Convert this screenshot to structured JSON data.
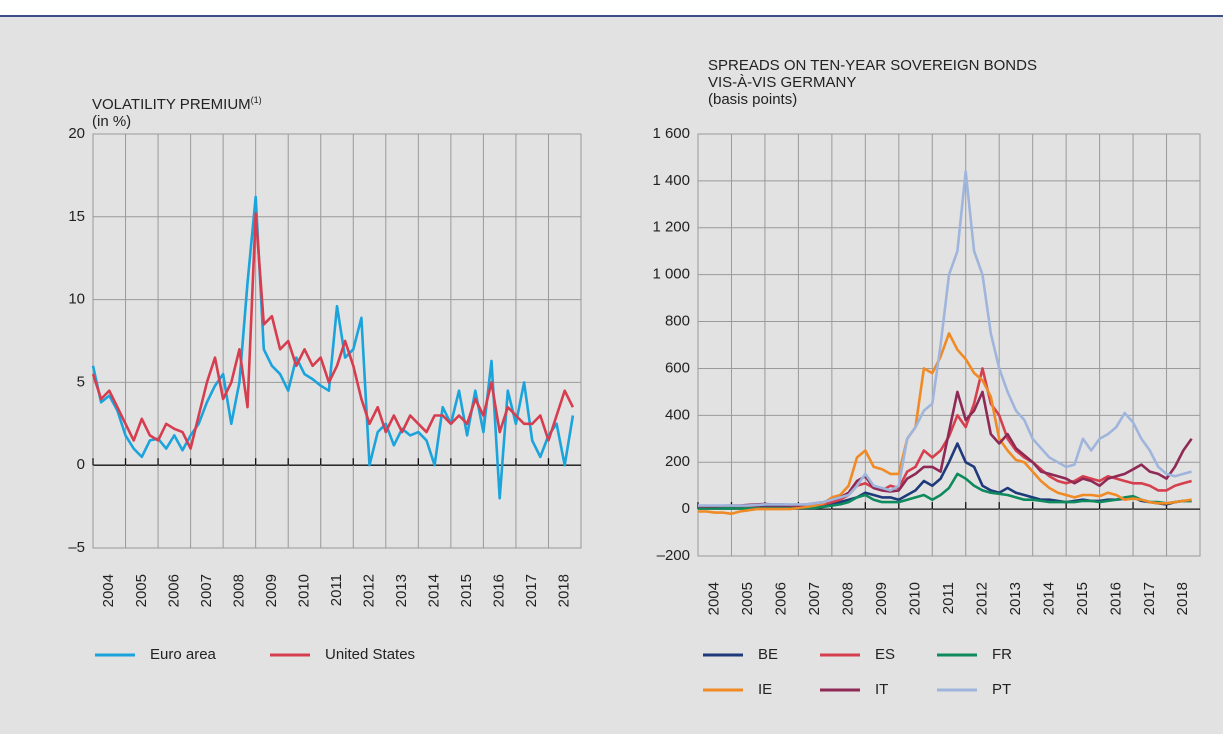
{
  "chart_data": [
    {
      "type": "line",
      "title": "VOLATILITY PREMIUM",
      "title_note": "(1)",
      "subtitle": "(in %)",
      "x": [
        2004,
        2004.25,
        2004.5,
        2004.75,
        2005,
        2005.25,
        2005.5,
        2005.75,
        2006,
        2006.25,
        2006.5,
        2006.75,
        2007,
        2007.25,
        2007.5,
        2007.75,
        2008,
        2008.25,
        2008.5,
        2008.75,
        2009,
        2009.25,
        2009.5,
        2009.75,
        2010,
        2010.25,
        2010.5,
        2010.75,
        2011,
        2011.25,
        2011.5,
        2011.75,
        2012,
        2012.25,
        2012.5,
        2012.75,
        2013,
        2013.25,
        2013.5,
        2013.75,
        2014,
        2014.25,
        2014.5,
        2014.75,
        2015,
        2015.25,
        2015.5,
        2015.75,
        2016,
        2016.25,
        2016.5,
        2016.75,
        2017,
        2017.25,
        2017.5,
        2017.75,
        2018,
        2018.25,
        2018.5,
        2018.75
      ],
      "xlim": [
        2004,
        2019
      ],
      "xticks": [
        2004,
        2005,
        2006,
        2007,
        2008,
        2009,
        2010,
        2011,
        2012,
        2013,
        2014,
        2015,
        2016,
        2017,
        2018
      ],
      "ylim": [
        -5,
        20
      ],
      "yticks": [
        {
          "value": -5,
          "label": "–5"
        },
        0,
        5,
        10,
        15,
        20
      ],
      "grid": true,
      "series": [
        {
          "name": "Euro area",
          "color": "#1ba3dc",
          "values": [
            6.0,
            3.8,
            4.2,
            3.3,
            1.8,
            1.0,
            0.5,
            1.5,
            1.6,
            1.0,
            1.8,
            0.9,
            1.8,
            2.5,
            3.8,
            4.8,
            5.5,
            2.5,
            5.0,
            11.0,
            16.2,
            7.0,
            6.0,
            5.5,
            4.5,
            6.5,
            5.5,
            5.2,
            4.8,
            4.5,
            9.6,
            6.5,
            7.0,
            8.9,
            0.0,
            2.0,
            2.5,
            1.2,
            2.2,
            1.8,
            2.0,
            1.5,
            0.0,
            3.5,
            2.5,
            4.5,
            1.8,
            4.5,
            2.0,
            6.3,
            -2.0,
            4.5,
            2.5,
            5.0,
            1.5,
            0.5,
            1.8,
            2.5,
            0.0,
            3.0
          ]
        },
        {
          "name": "United States",
          "color": "#d63e4f",
          "values": [
            5.5,
            4.0,
            4.5,
            3.5,
            2.5,
            1.5,
            2.8,
            1.8,
            1.5,
            2.5,
            2.2,
            2.0,
            1.0,
            3.0,
            5.0,
            6.5,
            4.0,
            5.0,
            7.0,
            3.5,
            15.2,
            8.5,
            9.0,
            7.0,
            7.5,
            6.0,
            7.0,
            6.0,
            6.5,
            5.0,
            6.0,
            7.5,
            6.0,
            4.0,
            2.5,
            3.5,
            2.0,
            3.0,
            2.0,
            3.0,
            2.5,
            2.0,
            3.0,
            3.0,
            2.5,
            3.0,
            2.5,
            4.0,
            3.0,
            5.0,
            2.0,
            3.5,
            3.0,
            2.5,
            2.5,
            3.0,
            1.5,
            3.0,
            4.5,
            3.5
          ]
        }
      ]
    },
    {
      "type": "line",
      "title": "SPREADS ON TEN-YEAR SOVEREIGN BONDS VIS-À-VIS GERMANY",
      "subtitle": "(basis points)",
      "x": [
        2004,
        2004.25,
        2004.5,
        2004.75,
        2005,
        2005.25,
        2005.5,
        2005.75,
        2006,
        2006.25,
        2006.5,
        2006.75,
        2007,
        2007.25,
        2007.5,
        2007.75,
        2008,
        2008.25,
        2008.5,
        2008.75,
        2009,
        2009.25,
        2009.5,
        2009.75,
        2010,
        2010.25,
        2010.5,
        2010.75,
        2011,
        2011.25,
        2011.5,
        2011.75,
        2012,
        2012.25,
        2012.5,
        2012.75,
        2013,
        2013.25,
        2013.5,
        2013.75,
        2014,
        2014.25,
        2014.5,
        2014.75,
        2015,
        2015.25,
        2015.5,
        2015.75,
        2016,
        2016.25,
        2016.5,
        2016.75,
        2017,
        2017.25,
        2017.5,
        2017.75,
        2018,
        2018.25,
        2018.5,
        2018.75
      ],
      "xlim": [
        2004,
        2019
      ],
      "xticks": [
        2004,
        2005,
        2006,
        2007,
        2008,
        2009,
        2010,
        2011,
        2012,
        2013,
        2014,
        2015,
        2016,
        2017,
        2018
      ],
      "ylim": [
        -200,
        1600
      ],
      "yticks": [
        {
          "value": -200,
          "label": "–200"
        },
        0,
        200,
        400,
        600,
        800,
        {
          "value": 1000,
          "label": "1 000"
        },
        {
          "value": 1200,
          "label": "1 200"
        },
        {
          "value": 1400,
          "label": "1 400"
        },
        {
          "value": 1600,
          "label": "1 600"
        }
      ],
      "grid": true,
      "series": [
        {
          "name": "BE",
          "color": "#1f3a7a",
          "values": [
            5,
            5,
            5,
            5,
            5,
            5,
            8,
            8,
            10,
            10,
            10,
            10,
            10,
            10,
            10,
            15,
            20,
            30,
            40,
            50,
            70,
            60,
            50,
            50,
            40,
            60,
            80,
            120,
            100,
            130,
            200,
            280,
            200,
            180,
            100,
            80,
            70,
            90,
            70,
            60,
            50,
            40,
            40,
            35,
            30,
            35,
            40,
            35,
            35,
            40,
            40,
            45,
            50,
            35,
            30,
            25,
            20,
            30,
            35,
            35
          ]
        },
        {
          "name": "ES",
          "color": "#d6404e",
          "values": [
            5,
            5,
            5,
            5,
            5,
            5,
            5,
            5,
            5,
            5,
            5,
            5,
            5,
            5,
            10,
            20,
            30,
            40,
            60,
            100,
            110,
            90,
            80,
            100,
            90,
            160,
            180,
            250,
            220,
            250,
            310,
            400,
            350,
            450,
            600,
            450,
            400,
            300,
            250,
            220,
            200,
            170,
            140,
            120,
            110,
            120,
            140,
            130,
            120,
            140,
            130,
            120,
            110,
            110,
            100,
            80,
            80,
            100,
            110,
            120
          ]
        },
        {
          "name": "FR",
          "color": "#0e8a5c",
          "values": [
            3,
            3,
            3,
            3,
            3,
            3,
            3,
            3,
            3,
            3,
            3,
            3,
            5,
            5,
            5,
            10,
            15,
            20,
            30,
            50,
            60,
            40,
            30,
            30,
            30,
            40,
            50,
            60,
            40,
            60,
            90,
            150,
            130,
            100,
            80,
            70,
            65,
            60,
            50,
            40,
            40,
            35,
            30,
            30,
            30,
            30,
            35,
            35,
            30,
            35,
            40,
            50,
            55,
            40,
            30,
            30,
            25,
            30,
            35,
            35
          ]
        },
        {
          "name": "IE",
          "color": "#f08a24",
          "values": [
            -10,
            -10,
            -15,
            -15,
            -20,
            -10,
            -5,
            0,
            0,
            0,
            0,
            0,
            5,
            10,
            15,
            25,
            50,
            60,
            100,
            220,
            250,
            180,
            170,
            150,
            150,
            300,
            350,
            600,
            580,
            650,
            750,
            680,
            640,
            580,
            550,
            480,
            300,
            250,
            210,
            200,
            160,
            120,
            90,
            70,
            60,
            50,
            60,
            60,
            55,
            70,
            60,
            40,
            45,
            40,
            30,
            25,
            25,
            30,
            35,
            40
          ]
        },
        {
          "name": "IT",
          "color": "#8e2a55",
          "values": [
            12,
            12,
            12,
            14,
            15,
            15,
            18,
            20,
            22,
            20,
            20,
            18,
            15,
            20,
            25,
            30,
            40,
            50,
            70,
            120,
            140,
            90,
            80,
            75,
            80,
            130,
            150,
            180,
            180,
            160,
            330,
            500,
            380,
            420,
            500,
            320,
            280,
            320,
            260,
            230,
            200,
            160,
            150,
            140,
            130,
            110,
            130,
            120,
            100,
            130,
            140,
            150,
            170,
            190,
            160,
            150,
            130,
            180,
            250,
            300
          ]
        },
        {
          "name": "PT",
          "color": "#9fb5dc",
          "values": [
            15,
            15,
            15,
            15,
            15,
            15,
            15,
            18,
            20,
            20,
            20,
            20,
            20,
            20,
            25,
            30,
            40,
            50,
            60,
            100,
            150,
            100,
            90,
            80,
            100,
            300,
            350,
            420,
            450,
            700,
            1000,
            1100,
            1440,
            1100,
            1000,
            750,
            600,
            500,
            420,
            380,
            300,
            260,
            220,
            200,
            180,
            190,
            300,
            250,
            300,
            320,
            350,
            410,
            370,
            300,
            250,
            180,
            150,
            140,
            150,
            160
          ]
        }
      ]
    }
  ]
}
